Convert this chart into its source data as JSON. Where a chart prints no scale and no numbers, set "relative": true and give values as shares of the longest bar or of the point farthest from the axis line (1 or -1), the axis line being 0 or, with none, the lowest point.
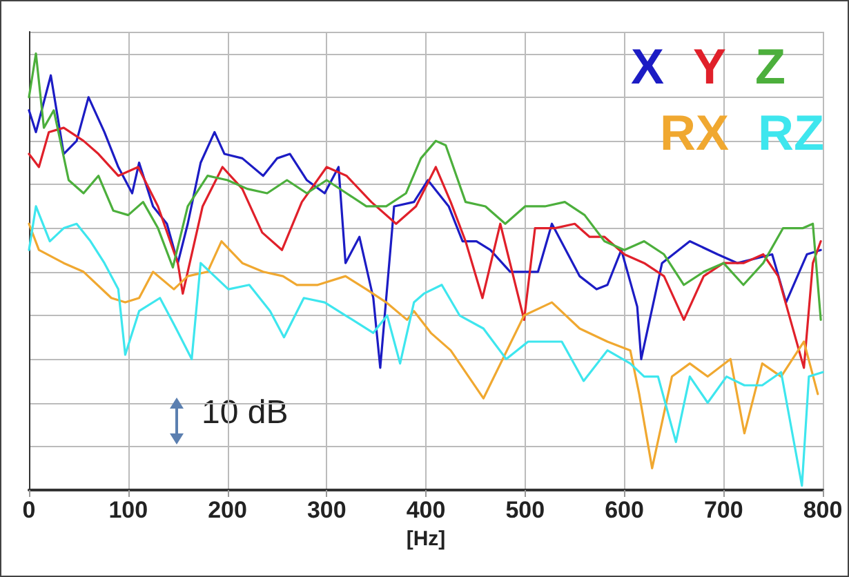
{
  "chart_data": {
    "type": "line",
    "relative": true,
    "xlabel": "[Hz]",
    "xlim": [
      0,
      800
    ],
    "xticks": [
      0,
      100,
      200,
      300,
      400,
      500,
      600,
      700,
      800
    ],
    "grid": true,
    "legend": "top right",
    "marker": "none",
    "line_style": "solid",
    "annotations": [
      "10 dB"
    ],
    "series": [
      {
        "name": "X",
        "color": "#1c1cc4",
        "x": [
          0,
          7,
          22,
          35,
          48,
          60,
          76,
          90,
          104,
          111,
          125,
          139,
          150,
          160,
          173,
          187,
          197,
          215,
          236,
          250,
          263,
          280,
          298,
          312,
          319,
          333,
          347,
          354,
          368,
          388,
          402,
          409,
          423,
          437,
          451,
          465,
          485,
          513,
          527,
          541,
          555,
          572,
          583,
          597,
          613,
          617,
          638,
          666,
          694,
          714,
          749,
          763,
          784,
          798
        ],
        "values": [
          0.87,
          0.82,
          0.95,
          0.77,
          0.8,
          0.9,
          0.82,
          0.74,
          0.68,
          0.75,
          0.65,
          0.61,
          0.52,
          0.61,
          0.75,
          0.82,
          0.77,
          0.76,
          0.72,
          0.76,
          0.77,
          0.71,
          0.68,
          0.74,
          0.52,
          0.58,
          0.44,
          0.28,
          0.65,
          0.66,
          0.71,
          0.69,
          0.65,
          0.57,
          0.57,
          0.55,
          0.5,
          0.5,
          0.61,
          0.55,
          0.49,
          0.46,
          0.47,
          0.55,
          0.42,
          0.3,
          0.52,
          0.57,
          0.54,
          0.52,
          0.54,
          0.43,
          0.54,
          0.55
        ]
      },
      {
        "name": "Y",
        "color": "#e0202a",
        "x": [
          0,
          10,
          20,
          35,
          55,
          70,
          90,
          110,
          130,
          150,
          155,
          175,
          195,
          215,
          235,
          255,
          275,
          300,
          320,
          345,
          370,
          390,
          410,
          425,
          440,
          457,
          475,
          499,
          510,
          530,
          550,
          565,
          580,
          600,
          620,
          640,
          660,
          680,
          700,
          720,
          740,
          755,
          781,
          790,
          798
        ],
        "values": [
          0.77,
          0.74,
          0.82,
          0.83,
          0.8,
          0.77,
          0.72,
          0.74,
          0.65,
          0.52,
          0.45,
          0.65,
          0.74,
          0.69,
          0.59,
          0.55,
          0.66,
          0.74,
          0.72,
          0.66,
          0.61,
          0.65,
          0.74,
          0.66,
          0.57,
          0.44,
          0.61,
          0.39,
          0.6,
          0.6,
          0.61,
          0.58,
          0.58,
          0.54,
          0.52,
          0.49,
          0.39,
          0.49,
          0.52,
          0.52,
          0.54,
          0.49,
          0.28,
          0.52,
          0.57
        ]
      },
      {
        "name": "Z",
        "color": "#4caf3c",
        "x": [
          0,
          7,
          15,
          25,
          40,
          55,
          70,
          85,
          100,
          115,
          130,
          145,
          160,
          180,
          200,
          220,
          240,
          260,
          280,
          300,
          320,
          340,
          360,
          380,
          395,
          410,
          420,
          440,
          460,
          480,
          500,
          520,
          540,
          560,
          580,
          600,
          620,
          640,
          660,
          680,
          700,
          720,
          740,
          760,
          780,
          790,
          798
        ],
        "values": [
          0.9,
          1.0,
          0.83,
          0.87,
          0.71,
          0.68,
          0.72,
          0.64,
          0.63,
          0.66,
          0.6,
          0.51,
          0.65,
          0.72,
          0.71,
          0.69,
          0.68,
          0.71,
          0.68,
          0.71,
          0.68,
          0.65,
          0.65,
          0.68,
          0.76,
          0.8,
          0.79,
          0.66,
          0.65,
          0.61,
          0.65,
          0.65,
          0.66,
          0.63,
          0.57,
          0.55,
          0.57,
          0.54,
          0.47,
          0.5,
          0.52,
          0.47,
          0.52,
          0.6,
          0.6,
          0.61,
          0.39
        ]
      },
      {
        "name": "RX",
        "color": "#f0a830",
        "x": [
          0,
          10,
          35,
          55,
          83,
          97,
          111,
          125,
          146,
          160,
          180,
          194,
          215,
          236,
          256,
          270,
          291,
          319,
          340,
          360,
          381,
          388,
          405,
          425,
          458,
          499,
          527,
          555,
          583,
          606,
          615,
          628,
          648,
          666,
          684,
          707,
          721,
          739,
          758,
          781,
          795
        ],
        "values": [
          0.61,
          0.55,
          0.52,
          0.5,
          0.44,
          0.43,
          0.44,
          0.5,
          0.46,
          0.49,
          0.5,
          0.57,
          0.52,
          0.5,
          0.49,
          0.47,
          0.47,
          0.49,
          0.46,
          0.43,
          0.39,
          0.41,
          0.36,
          0.32,
          0.21,
          0.4,
          0.43,
          0.37,
          0.34,
          0.32,
          0.22,
          0.05,
          0.26,
          0.29,
          0.26,
          0.3,
          0.13,
          0.29,
          0.26,
          0.34,
          0.22
        ]
      },
      {
        "name": "RZ",
        "color": "#3ee6ee",
        "x": [
          0,
          7,
          21,
          35,
          48,
          62,
          76,
          90,
          97,
          111,
          132,
          146,
          164,
          173,
          187,
          201,
          222,
          243,
          257,
          277,
          298,
          319,
          333,
          347,
          361,
          374,
          388,
          398,
          416,
          434,
          458,
          481,
          503,
          537,
          559,
          583,
          606,
          620,
          634,
          652,
          666,
          684,
          703,
          721,
          739,
          758,
          779,
          786,
          800
        ],
        "values": [
          0.55,
          0.65,
          0.57,
          0.6,
          0.61,
          0.57,
          0.52,
          0.46,
          0.31,
          0.41,
          0.44,
          0.38,
          0.3,
          0.52,
          0.49,
          0.46,
          0.47,
          0.41,
          0.35,
          0.44,
          0.43,
          0.4,
          0.38,
          0.36,
          0.4,
          0.29,
          0.43,
          0.45,
          0.47,
          0.4,
          0.37,
          0.3,
          0.34,
          0.34,
          0.25,
          0.32,
          0.29,
          0.26,
          0.26,
          0.11,
          0.26,
          0.2,
          0.26,
          0.24,
          0.24,
          0.27,
          0.01,
          0.26,
          0.27
        ]
      }
    ]
  }
}
